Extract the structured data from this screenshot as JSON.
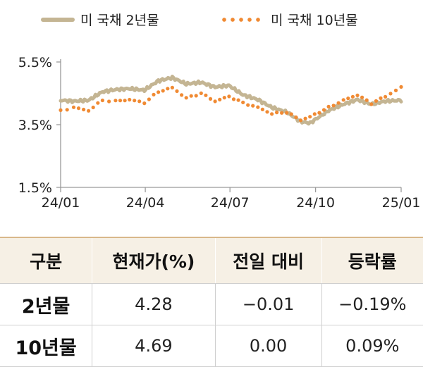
{
  "chart_data": {
    "type": "line",
    "xlabel": "",
    "ylabel": "",
    "x_ticks": [
      "24/01",
      "24/04",
      "24/07",
      "24/10",
      "25/01"
    ],
    "y_ticks": [
      "5.5%",
      "3.5%",
      "1.5%"
    ],
    "ylim": [
      1.5,
      5.5
    ],
    "xlim": [
      "2024-01-01",
      "2025-01-01"
    ],
    "grid": false,
    "legend_position": "top",
    "series": [
      {
        "name": "미 국채 2년물",
        "color": "#c4b593",
        "style": "solid",
        "points": [
          [
            "2024-01-01",
            4.28
          ],
          [
            "2024-01-15",
            4.25
          ],
          [
            "2024-01-31",
            4.28
          ],
          [
            "2024-02-15",
            4.55
          ],
          [
            "2024-02-29",
            4.62
          ],
          [
            "2024-03-15",
            4.65
          ],
          [
            "2024-03-31",
            4.6
          ],
          [
            "2024-04-15",
            4.9
          ],
          [
            "2024-04-30",
            5.0
          ],
          [
            "2024-05-15",
            4.8
          ],
          [
            "2024-05-31",
            4.85
          ],
          [
            "2024-06-15",
            4.7
          ],
          [
            "2024-06-30",
            4.75
          ],
          [
            "2024-07-15",
            4.45
          ],
          [
            "2024-07-31",
            4.3
          ],
          [
            "2024-08-15",
            4.05
          ],
          [
            "2024-08-31",
            3.9
          ],
          [
            "2024-09-15",
            3.6
          ],
          [
            "2024-09-25",
            3.55
          ],
          [
            "2024-10-15",
            3.95
          ],
          [
            "2024-10-31",
            4.15
          ],
          [
            "2024-11-15",
            4.3
          ],
          [
            "2024-11-30",
            4.15
          ],
          [
            "2024-12-15",
            4.25
          ],
          [
            "2025-01-01",
            4.28
          ]
        ]
      },
      {
        "name": "미 국채 10년물",
        "color": "#f08a33",
        "style": "dotted",
        "points": [
          [
            "2024-01-01",
            3.95
          ],
          [
            "2024-01-15",
            4.05
          ],
          [
            "2024-01-31",
            3.95
          ],
          [
            "2024-02-15",
            4.28
          ],
          [
            "2024-02-29",
            4.25
          ],
          [
            "2024-03-15",
            4.3
          ],
          [
            "2024-03-31",
            4.2
          ],
          [
            "2024-04-15",
            4.55
          ],
          [
            "2024-04-30",
            4.68
          ],
          [
            "2024-05-15",
            4.35
          ],
          [
            "2024-05-31",
            4.5
          ],
          [
            "2024-06-15",
            4.25
          ],
          [
            "2024-06-30",
            4.4
          ],
          [
            "2024-07-15",
            4.2
          ],
          [
            "2024-07-31",
            4.05
          ],
          [
            "2024-08-15",
            3.85
          ],
          [
            "2024-08-31",
            3.9
          ],
          [
            "2024-09-15",
            3.65
          ],
          [
            "2024-09-25",
            3.75
          ],
          [
            "2024-10-15",
            4.05
          ],
          [
            "2024-10-31",
            4.28
          ],
          [
            "2024-11-15",
            4.45
          ],
          [
            "2024-11-30",
            4.18
          ],
          [
            "2024-12-15",
            4.4
          ],
          [
            "2025-01-01",
            4.69
          ]
        ]
      }
    ]
  },
  "table": {
    "headers": [
      "구분",
      "현재가(%)",
      "전일 대비",
      "등락률"
    ],
    "rows": [
      [
        "2년물",
        "4.28",
        "−0.01",
        "−0.19%"
      ],
      [
        "10년물",
        "4.69",
        "0.00",
        "0.09%"
      ]
    ]
  }
}
